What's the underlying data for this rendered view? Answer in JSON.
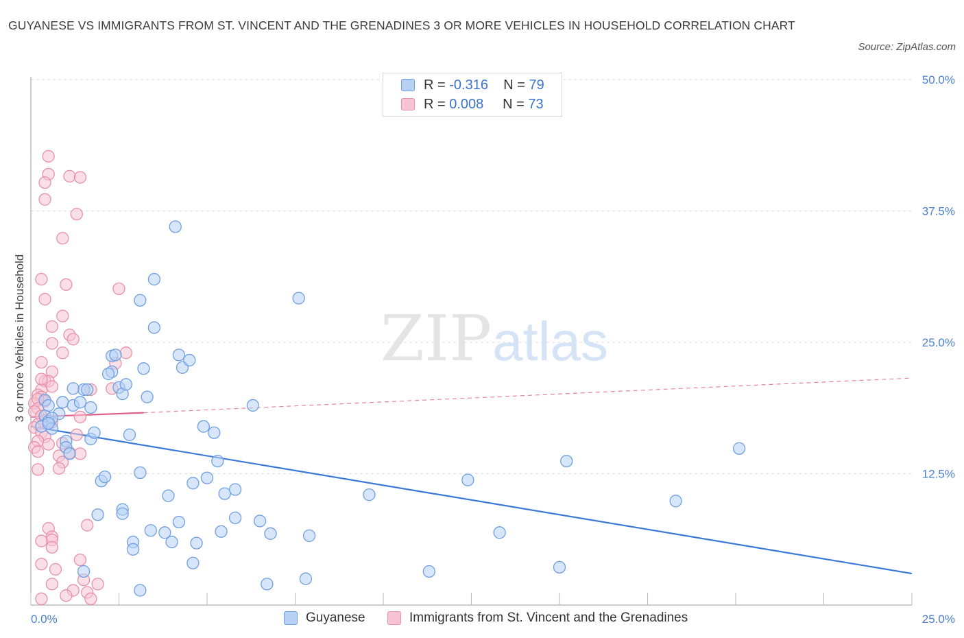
{
  "title": "GUYANESE VS IMMIGRANTS FROM ST. VINCENT AND THE GRENADINES 3 OR MORE VEHICLES IN HOUSEHOLD CORRELATION CHART",
  "source": "Source: ZipAtlas.com",
  "watermark": {
    "zip": "ZIP",
    "atlas": "atlas"
  },
  "legend": {
    "r_label": "R =",
    "n_label": "N =",
    "rows": [
      {
        "r": "-0.316",
        "n": "79"
      },
      {
        "r": "0.008",
        "n": "73"
      }
    ]
  },
  "colors": {
    "blue_fill": "#b7d1f5",
    "blue_stroke": "#6f9fe0",
    "blue_line": "#3878d6",
    "pink_fill": "#f8c4d4",
    "pink_stroke": "#e890aa",
    "pink_line": "#e0608a",
    "grid": "#dddddd",
    "axis_text": "#4a7fcf"
  },
  "chart_data": {
    "type": "scatter",
    "title": "GUYANESE VS IMMIGRANTS FROM ST. VINCENT AND THE GRENADINES 3 OR MORE VEHICLES IN HOUSEHOLD CORRELATION CHART",
    "xlabel": "",
    "ylabel": "3 or more Vehicles in Household",
    "xlim": [
      0,
      25
    ],
    "ylim": [
      0,
      50
    ],
    "x_tick_labels": [
      "0.0%",
      "25.0%"
    ],
    "y_tick_labels": [
      "12.5%",
      "25.0%",
      "37.5%",
      "50.0%"
    ],
    "y_ticks": [
      12.5,
      25.0,
      37.5,
      50.0
    ],
    "grid": true,
    "legend_position": "top-center",
    "series": [
      {
        "name": "Guyanese",
        "color": "#6f9fe0",
        "R": -0.316,
        "N": 79,
        "trend": {
          "x": [
            0.0,
            25.0
          ],
          "y": [
            17.0,
            3.0
          ],
          "style": "solid"
        },
        "points": [
          [
            0.3,
            17.0
          ],
          [
            0.4,
            18.0
          ],
          [
            0.5,
            17.5
          ],
          [
            0.4,
            19.5
          ],
          [
            0.5,
            19.0
          ],
          [
            0.8,
            18.2
          ],
          [
            0.9,
            19.3
          ],
          [
            0.6,
            17.8
          ],
          [
            1.0,
            15.6
          ],
          [
            1.0,
            15.0
          ],
          [
            1.1,
            14.4
          ],
          [
            1.2,
            19.0
          ],
          [
            1.4,
            19.3
          ],
          [
            1.5,
            20.5
          ],
          [
            1.7,
            18.8
          ],
          [
            1.7,
            15.8
          ],
          [
            1.8,
            16.4
          ],
          [
            1.2,
            20.6
          ],
          [
            2.3,
            22.2
          ],
          [
            2.5,
            20.7
          ],
          [
            2.3,
            23.7
          ],
          [
            2.6,
            20.1
          ],
          [
            2.7,
            21.0
          ],
          [
            2.2,
            22.0
          ],
          [
            2.0,
            11.8
          ],
          [
            2.1,
            12.2
          ],
          [
            2.8,
            16.2
          ],
          [
            3.1,
            29.0
          ],
          [
            3.2,
            22.5
          ],
          [
            3.3,
            19.8
          ],
          [
            3.5,
            31.0
          ],
          [
            3.5,
            26.4
          ],
          [
            2.4,
            23.8
          ],
          [
            4.2,
            23.8
          ],
          [
            4.3,
            22.6
          ],
          [
            4.5,
            23.3
          ],
          [
            4.1,
            36.0
          ],
          [
            3.1,
            12.6
          ],
          [
            4.6,
            11.6
          ],
          [
            5.0,
            12.1
          ],
          [
            4.9,
            17.0
          ],
          [
            5.2,
            16.4
          ],
          [
            5.3,
            13.7
          ],
          [
            6.3,
            19.0
          ],
          [
            7.6,
            29.2
          ],
          [
            3.9,
            10.4
          ],
          [
            5.5,
            10.6
          ],
          [
            5.8,
            11.0
          ],
          [
            1.9,
            8.6
          ],
          [
            2.6,
            9.1
          ],
          [
            2.6,
            8.7
          ],
          [
            2.9,
            6.0
          ],
          [
            2.9,
            5.3
          ],
          [
            3.4,
            7.1
          ],
          [
            3.8,
            6.9
          ],
          [
            4.2,
            7.9
          ],
          [
            4.0,
            6.0
          ],
          [
            4.7,
            5.9
          ],
          [
            5.4,
            7.0
          ],
          [
            5.8,
            8.3
          ],
          [
            6.5,
            8.0
          ],
          [
            6.8,
            6.8
          ],
          [
            7.9,
            6.6
          ],
          [
            4.6,
            4.0
          ],
          [
            3.1,
            1.4
          ],
          [
            6.7,
            2.0
          ],
          [
            7.8,
            2.5
          ],
          [
            9.6,
            10.5
          ],
          [
            12.4,
            11.9
          ],
          [
            11.3,
            3.2
          ],
          [
            13.3,
            6.9
          ],
          [
            15.2,
            13.7
          ],
          [
            15.0,
            3.6
          ],
          [
            18.3,
            9.9
          ],
          [
            20.1,
            14.9
          ],
          [
            1.5,
            3.2
          ],
          [
            0.6,
            16.8
          ],
          [
            0.5,
            17.3
          ],
          [
            1.6,
            20.5
          ]
        ]
      },
      {
        "name": "Immigrants from St. Vincent and the Grenadines",
        "color": "#e890aa",
        "R": 0.008,
        "N": 73,
        "trend": {
          "x": [
            0.0,
            3.2,
            25.0
          ],
          "y": [
            17.9,
            18.3,
            21.6
          ],
          "style": "solid-then-dashed"
        },
        "points": [
          [
            0.5,
            42.7
          ],
          [
            0.5,
            41.0
          ],
          [
            0.4,
            40.2
          ],
          [
            0.4,
            38.6
          ],
          [
            1.1,
            40.8
          ],
          [
            1.4,
            40.7
          ],
          [
            1.3,
            37.2
          ],
          [
            0.9,
            34.9
          ],
          [
            0.3,
            31.0
          ],
          [
            1.0,
            30.5
          ],
          [
            0.4,
            29.1
          ],
          [
            2.5,
            30.1
          ],
          [
            0.9,
            27.5
          ],
          [
            0.6,
            26.5
          ],
          [
            1.1,
            25.7
          ],
          [
            1.2,
            25.3
          ],
          [
            0.6,
            24.9
          ],
          [
            0.9,
            24.0
          ],
          [
            2.7,
            24.0
          ],
          [
            0.3,
            23.1
          ],
          [
            0.6,
            22.2
          ],
          [
            0.4,
            21.3
          ],
          [
            0.5,
            21.3
          ],
          [
            0.3,
            20.5
          ],
          [
            0.6,
            20.8
          ],
          [
            0.2,
            20.0
          ],
          [
            0.3,
            19.8
          ],
          [
            0.4,
            19.4
          ],
          [
            0.1,
            19.2
          ],
          [
            0.2,
            19.6
          ],
          [
            0.2,
            18.7
          ],
          [
            0.1,
            18.4
          ],
          [
            0.3,
            18.0
          ],
          [
            0.4,
            17.6
          ],
          [
            0.2,
            17.2
          ],
          [
            0.6,
            17.4
          ],
          [
            0.1,
            16.9
          ],
          [
            0.3,
            16.4
          ],
          [
            0.4,
            16.0
          ],
          [
            0.2,
            15.6
          ],
          [
            0.5,
            15.3
          ],
          [
            0.1,
            15.0
          ],
          [
            0.2,
            14.6
          ],
          [
            0.8,
            14.2
          ],
          [
            0.9,
            13.6
          ],
          [
            0.8,
            13.0
          ],
          [
            0.2,
            12.9
          ],
          [
            1.3,
            16.2
          ],
          [
            1.1,
            14.5
          ],
          [
            1.4,
            14.4
          ],
          [
            1.7,
            20.5
          ],
          [
            1.4,
            17.9
          ],
          [
            2.3,
            20.6
          ],
          [
            2.4,
            23.0
          ],
          [
            0.5,
            7.3
          ],
          [
            0.6,
            6.5
          ],
          [
            0.6,
            6.2
          ],
          [
            0.3,
            6.1
          ],
          [
            0.6,
            5.5
          ],
          [
            1.6,
            7.6
          ],
          [
            1.4,
            4.3
          ],
          [
            1.5,
            2.4
          ],
          [
            1.6,
            1.2
          ],
          [
            1.7,
            0.6
          ],
          [
            0.7,
            3.4
          ],
          [
            0.3,
            3.9
          ],
          [
            1.9,
            2.0
          ],
          [
            1.2,
            1.4
          ],
          [
            1.0,
            0.9
          ],
          [
            0.6,
            2.0
          ],
          [
            0.3,
            0.6
          ],
          [
            0.9,
            15.4
          ],
          [
            0.3,
            21.5
          ]
        ]
      }
    ]
  },
  "bottom_legend": [
    {
      "label": "Guyanese"
    },
    {
      "label": "Immigrants from St. Vincent and the Grenadines"
    }
  ]
}
